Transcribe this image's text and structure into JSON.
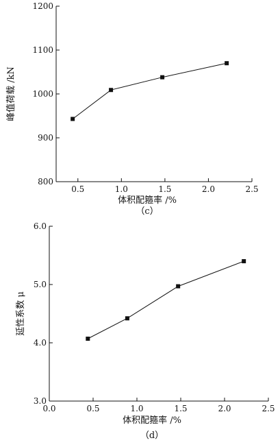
{
  "chart_data": [
    {
      "type": "line",
      "panel_label": "（c）",
      "xlabel": "体积配箍率 /%",
      "ylabel": "峰值荷载 /kN",
      "xlim": [
        0.25,
        2.5
      ],
      "ylim": [
        800,
        1200
      ],
      "xticks": [
        0.5,
        1.0,
        1.5,
        2.0,
        2.5
      ],
      "xtick_labels": [
        "0.5",
        "1.0",
        "1.5",
        "2.0",
        "2.5"
      ],
      "yticks": [
        800,
        900,
        1000,
        1100,
        1200
      ],
      "ytick_labels": [
        "800",
        "900",
        "1000",
        "1100",
        "1200"
      ],
      "grid": false,
      "series": [
        {
          "x": [
            0.44,
            0.88,
            1.47,
            2.21
          ],
          "y": [
            943,
            1009,
            1038,
            1070
          ]
        }
      ]
    },
    {
      "type": "line",
      "panel_label": "（d）",
      "xlabel": "体积配箍率 /%",
      "ylabel": "延性系数 μ",
      "xlim": [
        0,
        2.5
      ],
      "ylim": [
        3.0,
        6.0
      ],
      "xticks": [
        0,
        0.5,
        1.0,
        1.5,
        2.0,
        2.5
      ],
      "xtick_labels": [
        "0.0",
        "0.5",
        "1.0",
        "1.5",
        "2.0",
        "2.5"
      ],
      "yticks": [
        3.0,
        4.0,
        5.0,
        6.0
      ],
      "ytick_labels": [
        "3.0",
        "4.0",
        "5.0",
        "6.0"
      ],
      "grid": false,
      "series": [
        {
          "x": [
            0.44,
            0.89,
            1.47,
            2.22
          ],
          "y": [
            4.07,
            4.42,
            4.97,
            5.4
          ]
        }
      ]
    }
  ]
}
